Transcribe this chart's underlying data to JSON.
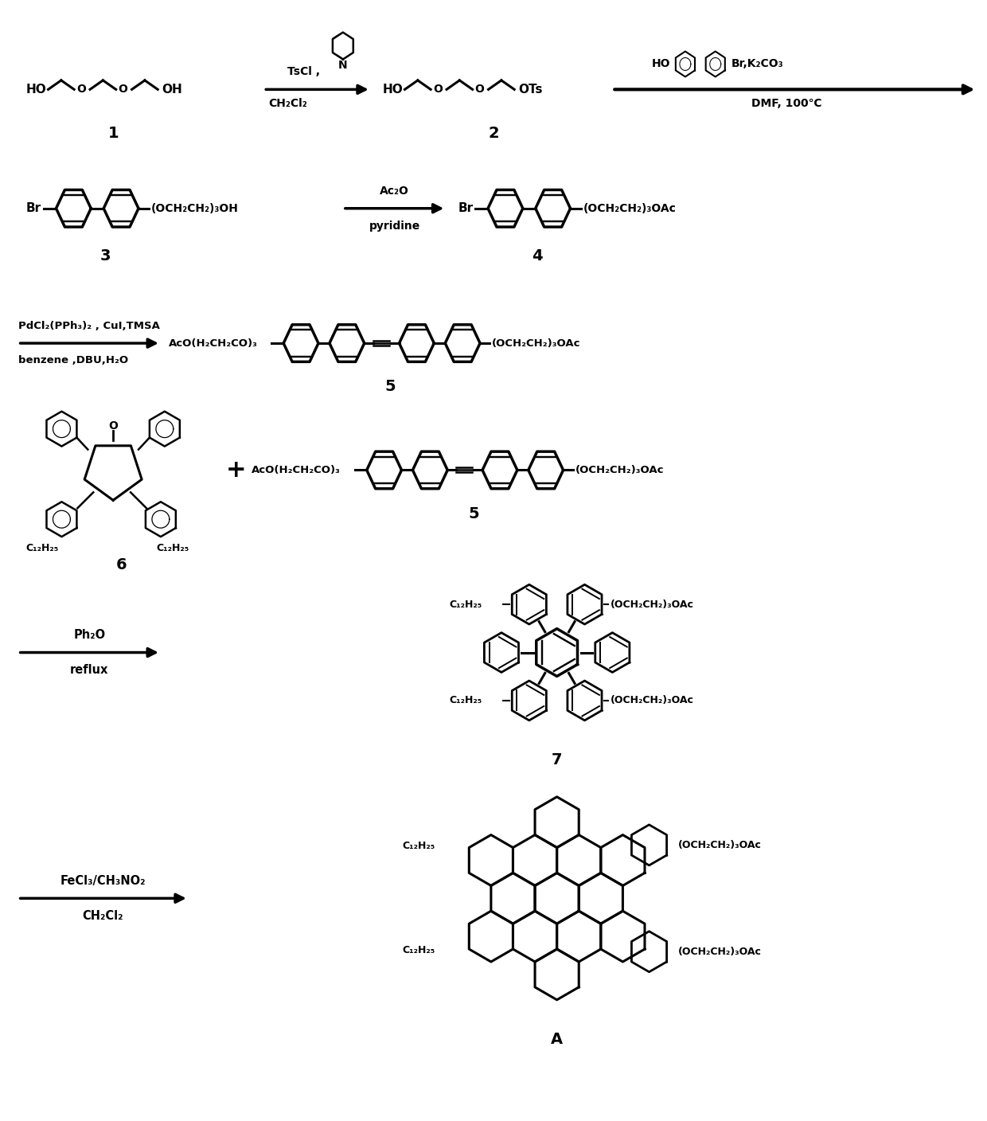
{
  "background_color": "#ffffff",
  "figsize": [
    12.4,
    14.08
  ],
  "dpi": 100,
  "compounds": {
    "1_label": "1",
    "2_label": "2",
    "3_label": "3",
    "4_label": "4",
    "5_label": "5",
    "6_label": "6",
    "7_label": "7",
    "A_label": "A"
  },
  "reagents": {
    "r1_above": "TsCl ,",
    "r1_below": "CH₂Cl₂",
    "r2_above": "HO◇◇Br,K₂CO₃",
    "r2_below": "DMF, 100℃",
    "r3_above": "Ac₂O",
    "r3_below": "pyridine",
    "r4_above": "PdCl₂(PPh₃)₂ , CuI,TMSA",
    "r4_below": "benzene ,DBU,H₂O",
    "r5_above": "Ph₂O",
    "r5_below": "reflux",
    "r6_above": "FeCl₃/CH₃NO₂",
    "r6_below": "CH₂Cl₂"
  }
}
